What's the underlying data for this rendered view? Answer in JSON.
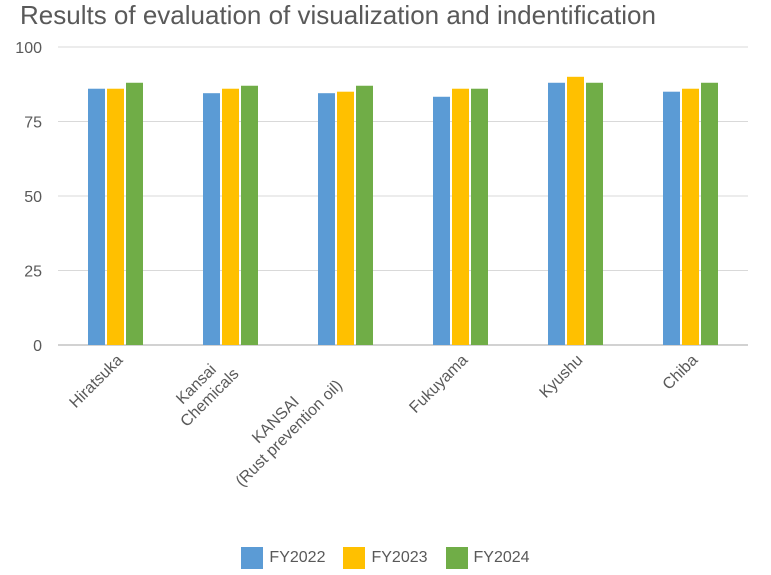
{
  "chart_data": {
    "type": "bar",
    "title": "Results of evaluation of visualization and indentification",
    "categories": [
      [
        "Hiratsuka"
      ],
      [
        "Kansai",
        "Chemicals"
      ],
      [
        "KANSAI",
        "(Rust prevention oil)"
      ],
      [
        "Fukuyama"
      ],
      [
        "Kyushu"
      ],
      [
        "Chiba"
      ]
    ],
    "series": [
      {
        "name": "FY2022",
        "color": "#5b9bd5",
        "values": [
          86,
          84.5,
          84.5,
          83.3,
          88,
          85
        ]
      },
      {
        "name": "FY2023",
        "color": "#ffc000",
        "values": [
          86,
          86,
          85,
          86,
          90,
          86
        ]
      },
      {
        "name": "FY2024",
        "color": "#70ad47",
        "values": [
          88,
          87,
          87,
          86,
          88,
          88
        ]
      }
    ],
    "ylim": [
      0,
      100
    ],
    "yticks": [
      "0",
      "25",
      "50",
      "75",
      "100"
    ],
    "grid": true,
    "legend": "bottom"
  }
}
